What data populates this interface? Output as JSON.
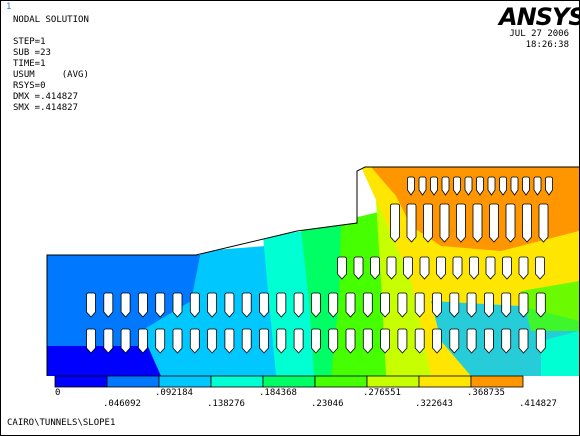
{
  "window_number": "1",
  "brand": "ANSYS",
  "date": "JUL 27 2006",
  "time": "18:26:38",
  "info_lines": [
    "NODAL SOLUTION",
    "",
    "STEP=1",
    "SUB =23",
    "TIME=1",
    "USUM     (AVG)",
    "RSYS=0",
    "DMX =.414827",
    "SMX =.414827"
  ],
  "contour_levels": [
    {
      "label": "0",
      "color": "#0000ff"
    },
    {
      "label": ".046092",
      "color": "#0078ff"
    },
    {
      "label": ".092184",
      "color": "#00c8ff"
    },
    {
      "label": ".138276",
      "color": "#00ffd2"
    },
    {
      "label": ".184368",
      "color": "#00ff64"
    },
    {
      "label": ".23046",
      "color": "#46ff00"
    },
    {
      "label": ".276551",
      "color": "#c8ff00"
    },
    {
      "label": ".322643",
      "color": "#ffe600"
    },
    {
      "label": ".368735",
      "color": "#ff9600"
    },
    {
      "label": ".414827",
      "color": "#ff0000"
    }
  ],
  "footer": "CAIRO\\TUNNELS\\SLOPE1"
}
